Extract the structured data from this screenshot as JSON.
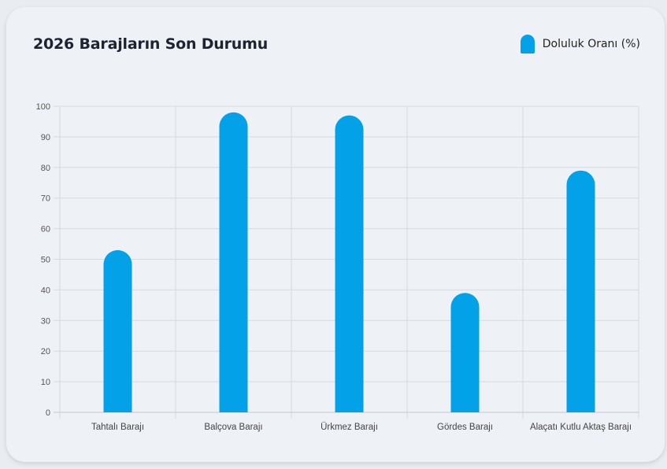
{
  "chart_data": {
    "type": "bar",
    "title": "2026 Barajların Son Durumu",
    "categories": [
      "Tahtalı Barajı",
      "Balçova Barajı",
      "Ürkmez Barajı",
      "Gördes Barajı",
      "Alaçatı Kutlu Aktaş Barajı"
    ],
    "series": [
      {
        "name": "Doluluk Oranı (%)",
        "values": [
          53,
          98,
          97,
          39,
          79
        ]
      }
    ],
    "ylim": [
      0,
      100
    ],
    "yticks": [
      0,
      10,
      20,
      30,
      40,
      50,
      60,
      70,
      80,
      90,
      100
    ],
    "grid": true,
    "legend_position": "top-right",
    "bar_color": "#03a2e8"
  }
}
